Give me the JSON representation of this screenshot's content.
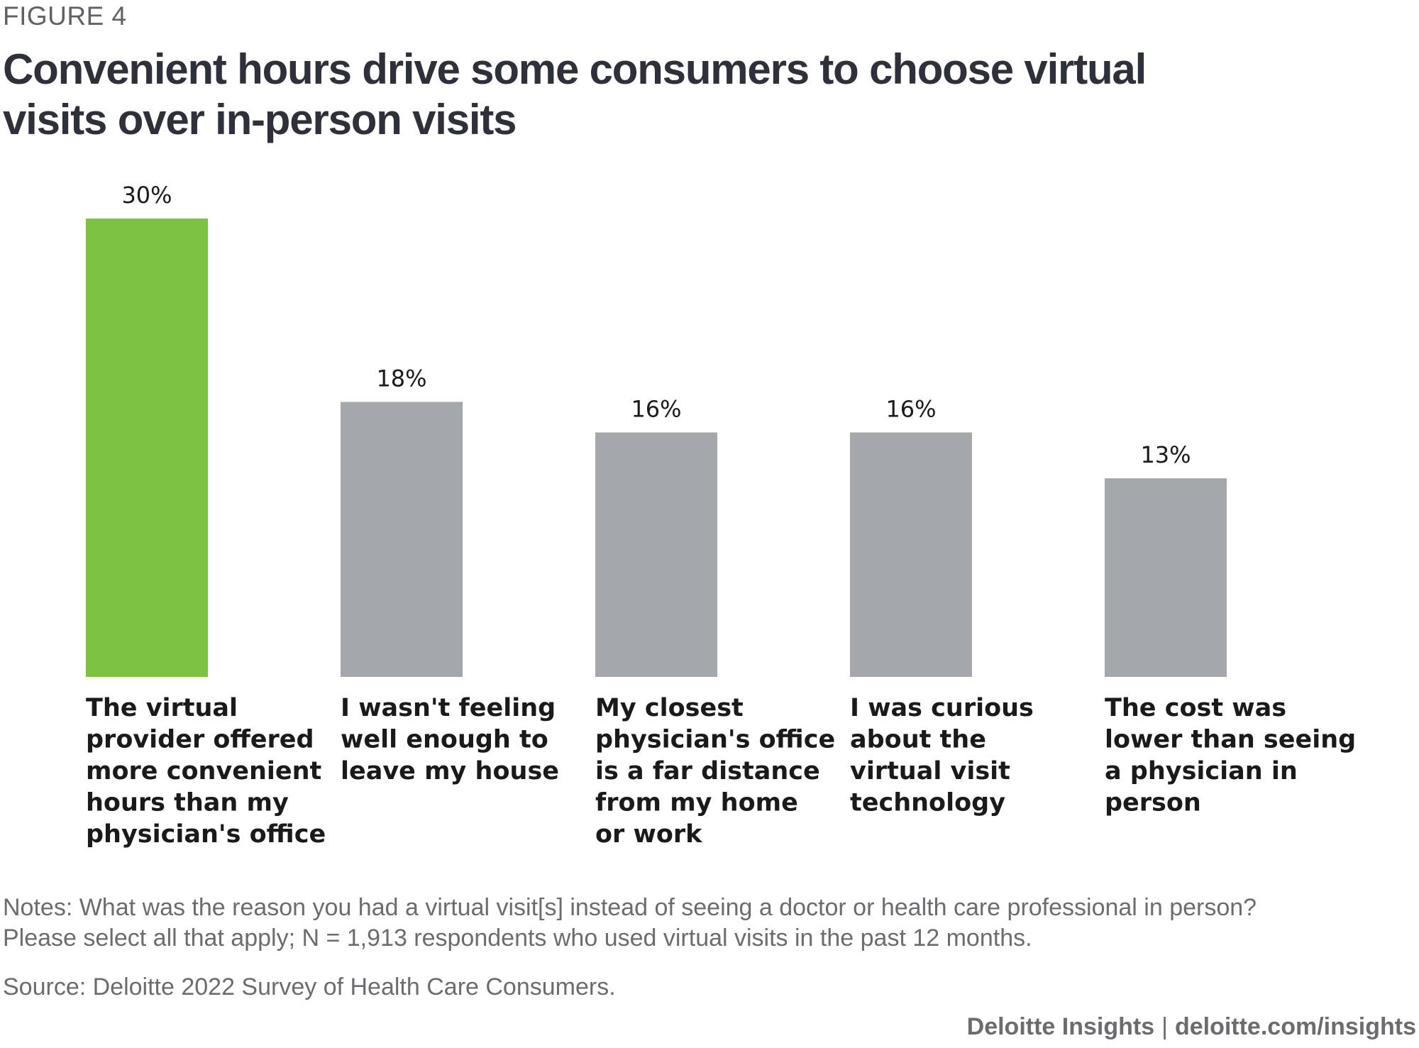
{
  "figure_label": "FIGURE 4",
  "chart_data": {
    "type": "bar",
    "title": "Convenient hours drive some consumers to choose virtual visits over in-person visits",
    "categories": [
      "The virtual provider offered more convenient hours than my physician's office",
      "I wasn't feeling well enough to leave my house",
      "My closest physician's office is a far distance from my home or work",
      "I was curious about the virtual visit technology",
      "The cost was lower than seeing a physician in person"
    ],
    "category_lines": [
      [
        "The virtual",
        "provider offered",
        "more convenient",
        "hours than my",
        "physician's office"
      ],
      [
        "I wasn't feeling",
        "well enough to",
        "leave my house"
      ],
      [
        "My closest",
        "physician's office",
        "is a far distance",
        "from my home",
        "or work"
      ],
      [
        "I was curious",
        "about the",
        "virtual visit",
        "technology"
      ],
      [
        "The cost was",
        "lower than seeing",
        "a physician in",
        "person"
      ]
    ],
    "values": [
      30,
      18,
      16,
      16,
      13
    ],
    "value_labels": [
      "30%",
      "18%",
      "16%",
      "16%",
      "13%"
    ],
    "highlight_index": 0,
    "colors": {
      "highlight": "#7dc242",
      "default": "#a5a8ab"
    },
    "xlabel": "",
    "ylabel": "",
    "ylim": [
      0,
      30
    ],
    "grid": false,
    "legend": "none"
  },
  "notes": {
    "line1": "Notes: What was the reason you had a virtual visit[s] instead of seeing a doctor or health care professional in person?",
    "line2": "Please select all that apply; N = 1,913 respondents who used virtual visits in the past 12 months."
  },
  "source": "Source: Deloitte 2022 Survey of Health Care Consumers.",
  "footer": {
    "brand": "Deloitte Insights",
    "separator": "|",
    "url": "deloitte.com/insights"
  }
}
